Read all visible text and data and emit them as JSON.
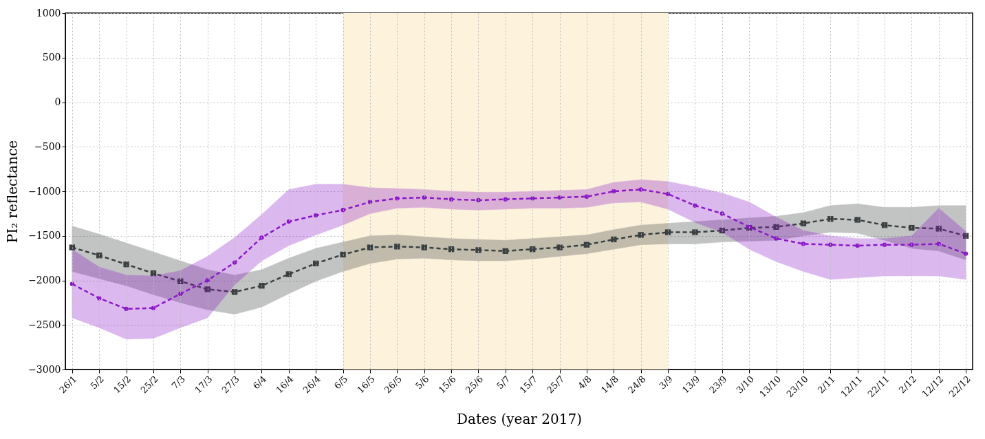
{
  "chart_data": {
    "type": "line",
    "xlabel": "Dates (year 2017)",
    "ylabel": "PI₂ reflectance",
    "categories": [
      "26/1",
      "5/2",
      "15/2",
      "25/2",
      "7/3",
      "17/3",
      "27/3",
      "6/4",
      "16/4",
      "26/4",
      "6/5",
      "16/5",
      "26/5",
      "5/6",
      "15/6",
      "25/6",
      "5/7",
      "15/7",
      "25/7",
      "4/8",
      "14/8",
      "24/8",
      "3/9",
      "13/9",
      "23/9",
      "3/10",
      "13/10",
      "23/10",
      "2/11",
      "12/11",
      "22/11",
      "2/12",
      "12/12",
      "22/12"
    ],
    "series": [
      {
        "color": "#3a3f40",
        "marker": "square",
        "values": [
          -1630,
          -1720,
          -1820,
          -1920,
          -2010,
          -2100,
          -2130,
          -2060,
          -1930,
          -1810,
          -1710,
          -1630,
          -1620,
          -1630,
          -1650,
          -1660,
          -1670,
          -1650,
          -1630,
          -1600,
          -1540,
          -1490,
          -1460,
          -1460,
          -1440,
          -1410,
          -1400,
          -1360,
          -1310,
          -1320,
          -1380,
          -1410,
          -1420,
          -1500
        ],
        "upper": [
          -1390,
          -1480,
          -1580,
          -1680,
          -1780,
          -1880,
          -1940,
          -1880,
          -1750,
          -1640,
          -1570,
          -1500,
          -1490,
          -1510,
          -1530,
          -1540,
          -1550,
          -1530,
          -1510,
          -1490,
          -1430,
          -1380,
          -1360,
          -1340,
          -1320,
          -1300,
          -1280,
          -1240,
          -1160,
          -1140,
          -1180,
          -1180,
          -1160,
          -1160
        ],
        "lower": [
          -1900,
          -1980,
          -2060,
          -2160,
          -2250,
          -2330,
          -2380,
          -2300,
          -2150,
          -2010,
          -1900,
          -1810,
          -1760,
          -1750,
          -1770,
          -1780,
          -1780,
          -1760,
          -1730,
          -1700,
          -1650,
          -1600,
          -1590,
          -1590,
          -1570,
          -1560,
          -1550,
          -1500,
          -1460,
          -1470,
          -1550,
          -1640,
          -1670,
          -1770
        ]
      },
      {
        "color": "#8b18c8",
        "marker": "circle",
        "values": [
          -2040,
          -2200,
          -2320,
          -2310,
          -2150,
          -2000,
          -1800,
          -1520,
          -1340,
          -1270,
          -1210,
          -1120,
          -1080,
          -1070,
          -1090,
          -1100,
          -1090,
          -1080,
          -1070,
          -1060,
          -1000,
          -980,
          -1030,
          -1160,
          -1250,
          -1400,
          -1530,
          -1590,
          -1600,
          -1610,
          -1600,
          -1600,
          -1590,
          -1700
        ],
        "upper": [
          -1650,
          -1850,
          -1940,
          -1950,
          -1890,
          -1730,
          -1520,
          -1260,
          -980,
          -920,
          -920,
          -960,
          -970,
          -980,
          -1000,
          -1010,
          -1010,
          -1000,
          -990,
          -980,
          -900,
          -870,
          -890,
          -950,
          -1020,
          -1120,
          -1290,
          -1440,
          -1500,
          -1530,
          -1530,
          -1500,
          -1190,
          -1450
        ],
        "lower": [
          -2420,
          -2530,
          -2660,
          -2650,
          -2530,
          -2420,
          -2050,
          -1780,
          -1610,
          -1490,
          -1380,
          -1250,
          -1190,
          -1180,
          -1200,
          -1210,
          -1200,
          -1190,
          -1190,
          -1180,
          -1130,
          -1120,
          -1200,
          -1350,
          -1460,
          -1650,
          -1790,
          -1900,
          -1990,
          -1970,
          -1950,
          -1950,
          -1950,
          -1990
        ]
      }
    ],
    "ylim": [
      -3000,
      1000
    ],
    "yticks": [
      -3000,
      -2500,
      -2000,
      -1500,
      -1000,
      -500,
      0,
      500,
      1000
    ],
    "bands": [
      {
        "axis": "x",
        "from": "6/5",
        "to": "3/9",
        "color": "#fdf2dc"
      }
    ],
    "grid": true,
    "line_style": "dashed"
  }
}
